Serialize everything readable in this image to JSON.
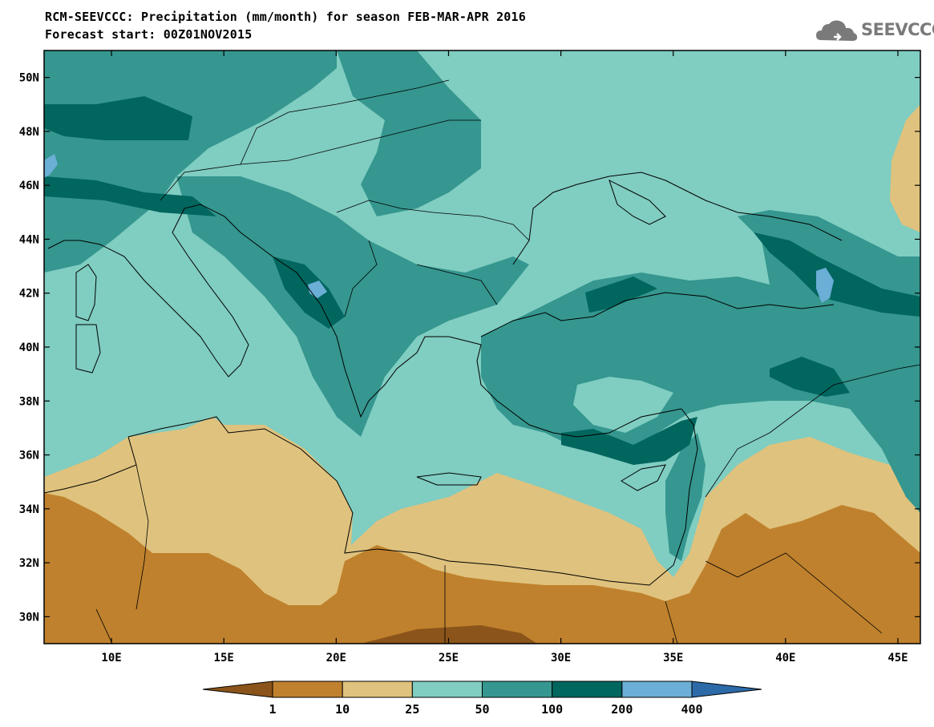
{
  "title_line1": "RCM-SEEVCCC: Precipitation (mm/month) for season FEB-MAR-APR 2016",
  "title_line2": "Forecast start: 00Z01NOV2015",
  "logo_text": "SEEVCCC",
  "logo_icon": "cloud-logo-icon",
  "map": {
    "lon_range": [
      7,
      46
    ],
    "lat_range": [
      29,
      51
    ],
    "lat_ticks": [
      {
        "value": 50,
        "label": "50N"
      },
      {
        "value": 48,
        "label": "48N"
      },
      {
        "value": 46,
        "label": "46N"
      },
      {
        "value": 44,
        "label": "44N"
      },
      {
        "value": 42,
        "label": "42N"
      },
      {
        "value": 40,
        "label": "40N"
      },
      {
        "value": 38,
        "label": "38N"
      },
      {
        "value": 36,
        "label": "36N"
      },
      {
        "value": 34,
        "label": "34N"
      },
      {
        "value": 32,
        "label": "32N"
      },
      {
        "value": 30,
        "label": "30N"
      }
    ],
    "lon_ticks": [
      {
        "value": 10,
        "label": "10E"
      },
      {
        "value": 15,
        "label": "15E"
      },
      {
        "value": 20,
        "label": "20E"
      },
      {
        "value": 25,
        "label": "25E"
      },
      {
        "value": 30,
        "label": "30E"
      },
      {
        "value": 35,
        "label": "35E"
      },
      {
        "value": 40,
        "label": "40E"
      },
      {
        "value": 45,
        "label": "45E"
      }
    ],
    "colors": {
      "lt1": "#8a541a",
      "c1_10": "#bf812d",
      "c10_25": "#dfc27d",
      "c25_50": "#80cdc1",
      "c50_100": "#35978f",
      "c100_200": "#01665e",
      "c200_400": "#6baed6",
      "gt400": "#2c6aa8"
    }
  },
  "colorbar": {
    "labels": [
      "1",
      "10",
      "25",
      "50",
      "100",
      "200",
      "400"
    ],
    "colors": [
      "#8a541a",
      "#bf812d",
      "#dfc27d",
      "#80cdc1",
      "#35978f",
      "#01665e",
      "#6baed6",
      "#2c6aa8"
    ]
  }
}
